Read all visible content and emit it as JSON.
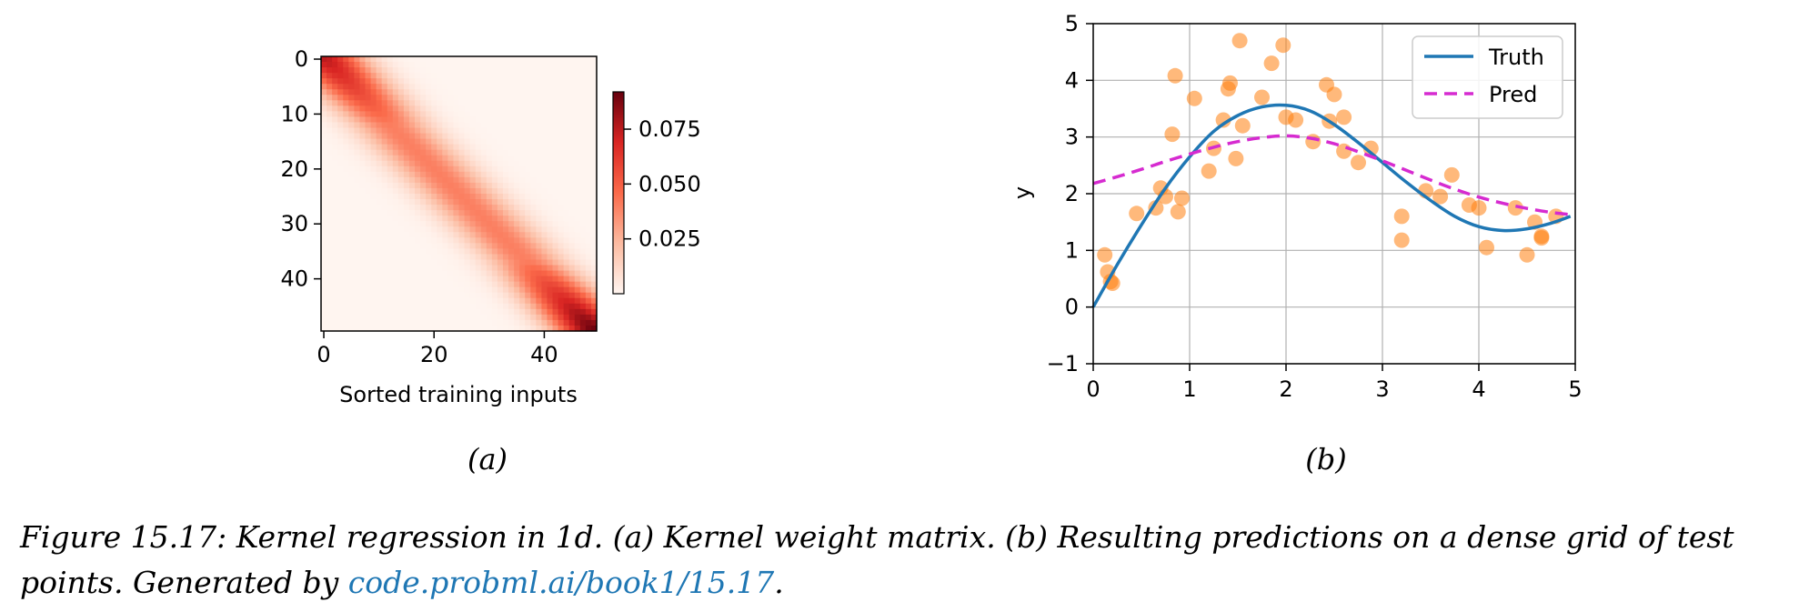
{
  "chart_data": [
    {
      "type": "heatmap",
      "panel_label": "(a)",
      "xlabel": "Sorted training inputs",
      "ylabel": "",
      "rows": 50,
      "cols": 50,
      "x_ticks": [
        "0",
        "20",
        "40"
      ],
      "y_ticks": [
        "0",
        "10",
        "20",
        "30",
        "40"
      ],
      "colorbar_ticks": [
        "0.075",
        "0.050",
        "0.025"
      ],
      "colorbar_range": [
        0.0,
        0.092
      ],
      "colormap": "Reds",
      "values_description_free": true,
      "band_profile": {
        "peak_weight_at_row0": 0.075,
        "peak_weight_at_row49": 0.09,
        "peak_weight_middle": 0.04,
        "bandwidth_in_cells": 7
      }
    },
    {
      "type": "line",
      "panel_label": "(b)",
      "xlabel": "",
      "ylabel": "y",
      "xlim": [
        0,
        5
      ],
      "ylim": [
        -1,
        5
      ],
      "x_ticks": [
        "0",
        "1",
        "2",
        "3",
        "4",
        "5"
      ],
      "y_ticks": [
        "−1",
        "0",
        "1",
        "2",
        "3",
        "4",
        "5"
      ],
      "grid": true,
      "legend_position": "top-right",
      "series": [
        {
          "name": "Truth",
          "style": "solid",
          "color": "#1f77b4",
          "x": [
            0,
            0.25,
            0.5,
            0.75,
            1.0,
            1.25,
            1.5,
            1.75,
            2.0,
            2.25,
            2.5,
            2.75,
            3.0,
            3.25,
            3.5,
            3.75,
            4.0,
            4.25,
            4.5,
            4.75,
            4.95
          ],
          "y": [
            0.0,
            0.75,
            1.45,
            2.1,
            2.65,
            3.1,
            3.38,
            3.53,
            3.56,
            3.46,
            3.22,
            2.9,
            2.55,
            2.2,
            1.88,
            1.6,
            1.42,
            1.35,
            1.38,
            1.48,
            1.6
          ]
        },
        {
          "name": "Pred",
          "style": "dashed",
          "color": "#d62bd0",
          "x": [
            0,
            0.25,
            0.5,
            0.75,
            1.0,
            1.25,
            1.5,
            1.75,
            2.0,
            2.25,
            2.5,
            2.75,
            3.0,
            3.25,
            3.5,
            3.75,
            4.0,
            4.25,
            4.5,
            4.75,
            4.95
          ],
          "y": [
            2.18,
            2.3,
            2.43,
            2.57,
            2.7,
            2.82,
            2.92,
            2.99,
            3.02,
            2.98,
            2.88,
            2.74,
            2.58,
            2.41,
            2.24,
            2.08,
            1.94,
            1.83,
            1.74,
            1.67,
            1.63
          ]
        },
        {
          "name": "",
          "type": "scatter",
          "color": "#ff7f0e",
          "points": [
            [
              0.12,
              0.92
            ],
            [
              0.15,
              0.62
            ],
            [
              0.18,
              0.45
            ],
            [
              0.2,
              0.42
            ],
            [
              0.45,
              1.65
            ],
            [
              0.65,
              1.75
            ],
            [
              0.7,
              2.1
            ],
            [
              0.75,
              1.95
            ],
            [
              0.82,
              3.05
            ],
            [
              0.85,
              4.08
            ],
            [
              0.88,
              1.68
            ],
            [
              0.92,
              1.92
            ],
            [
              1.05,
              3.68
            ],
            [
              1.2,
              2.4
            ],
            [
              1.25,
              2.8
            ],
            [
              1.35,
              3.3
            ],
            [
              1.4,
              3.85
            ],
            [
              1.42,
              3.95
            ],
            [
              1.48,
              2.62
            ],
            [
              1.52,
              4.7
            ],
            [
              1.55,
              3.2
            ],
            [
              1.75,
              3.7
            ],
            [
              1.85,
              4.3
            ],
            [
              1.97,
              4.62
            ],
            [
              2.0,
              3.35
            ],
            [
              2.1,
              3.3
            ],
            [
              2.28,
              2.92
            ],
            [
              2.42,
              3.92
            ],
            [
              2.45,
              3.28
            ],
            [
              2.5,
              3.75
            ],
            [
              2.6,
              3.35
            ],
            [
              2.6,
              2.75
            ],
            [
              2.75,
              2.55
            ],
            [
              2.88,
              2.8
            ],
            [
              3.2,
              1.6
            ],
            [
              3.2,
              1.18
            ],
            [
              3.45,
              2.05
            ],
            [
              3.6,
              1.95
            ],
            [
              3.72,
              2.33
            ],
            [
              3.9,
              1.8
            ],
            [
              4.0,
              1.75
            ],
            [
              4.08,
              1.05
            ],
            [
              4.38,
              1.75
            ],
            [
              4.5,
              0.92
            ],
            [
              4.58,
              1.5
            ],
            [
              4.65,
              1.25
            ],
            [
              4.65,
              1.22
            ],
            [
              4.8,
              1.6
            ]
          ]
        }
      ]
    }
  ],
  "caption": {
    "text_before_link": "Figure 15.17: Kernel regression in 1d. (a) Kernel weight matrix. (b) Resulting predictions on a dense grid of test points. Generated by ",
    "link_text": "code.probml.ai/book1/15.17",
    "text_after_link": "."
  }
}
